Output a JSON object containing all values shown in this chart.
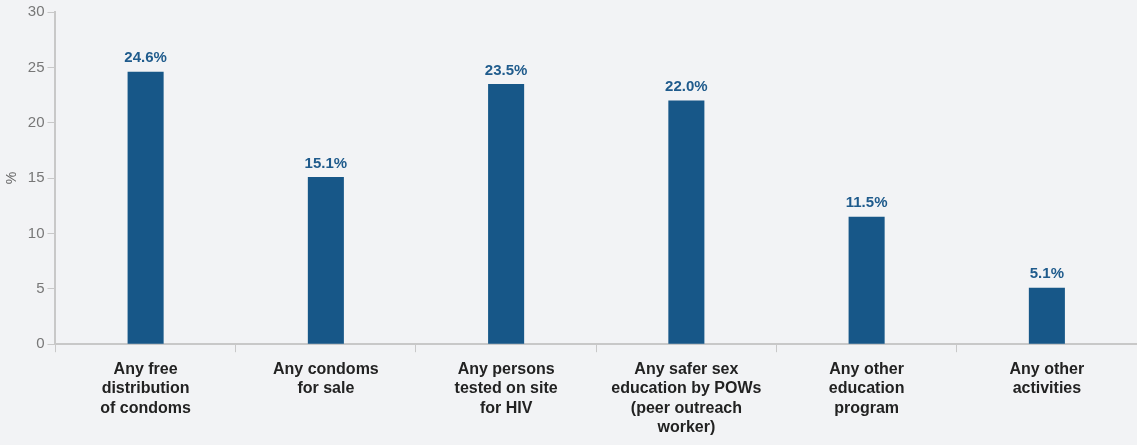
{
  "chart_data": {
    "type": "bar",
    "ylabel": "%",
    "categories": [
      "Any free\ndistribution\nof condoms",
      "Any condoms\nfor sale",
      "Any persons\ntested on site\nfor HIV",
      "Any safer sex\neducation by POWs\n(peer outreach\nworker)",
      "Any other\neducation\nprogram",
      "Any other\nactivities"
    ],
    "values": [
      24.6,
      15.1,
      23.5,
      22.0,
      11.5,
      5.1
    ],
    "value_labels": [
      "24.6%",
      "15.1%",
      "23.5%",
      "22.0%",
      "11.5%",
      "5.1%"
    ],
    "color": "#175788",
    "ylim": [
      0,
      30
    ],
    "yticks": [
      0,
      5,
      10,
      15,
      20,
      25,
      30
    ],
    "grid": false,
    "legend": false
  }
}
